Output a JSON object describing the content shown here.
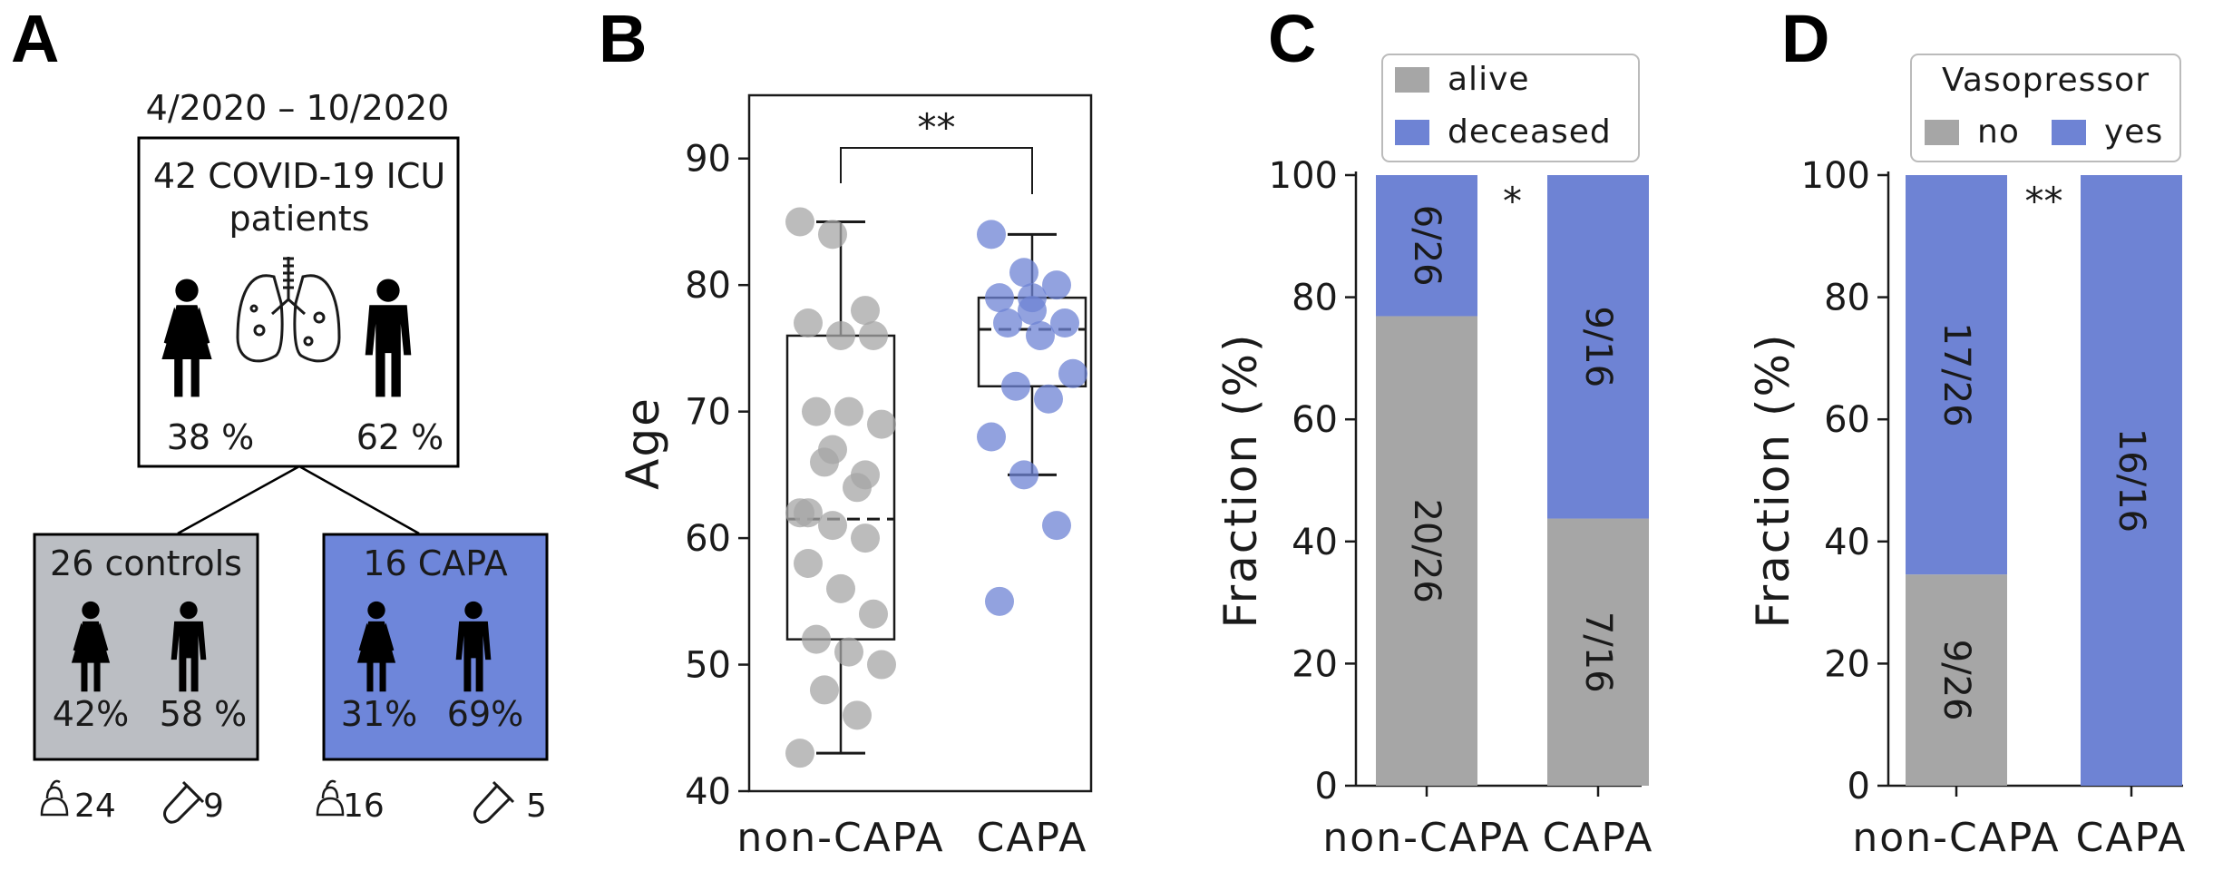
{
  "colors": {
    "gray": "#a6a6a6",
    "blue": "#6e83d4",
    "control_box": "#bbbec3",
    "capa_box": "#6e86da",
    "ink": "#1a1a1a"
  },
  "panel_a": {
    "letter": "A",
    "period": "4/2020 – 10/2020",
    "cohort_line1": "42 COVID-19 ICU",
    "cohort_line2": "patients",
    "female_pct": "38 %",
    "male_pct": "62 %",
    "controls": {
      "title": "26 controls",
      "female_pct": "42%",
      "male_pct": "58 %"
    },
    "capa": {
      "title": "16 CAPA",
      "female_pct": "31%",
      "male_pct": "69%"
    },
    "counts": {
      "controls_stool": "24",
      "controls_tube": "9",
      "capa_stool": "16",
      "capa_tube": "5"
    }
  },
  "chart_data": [
    {
      "panel": "B",
      "type": "scatter",
      "title": "",
      "xlabel": "",
      "ylabel": "Age",
      "ylim": [
        40,
        95
      ],
      "yticks": [
        40,
        50,
        60,
        70,
        80,
        90
      ],
      "categories": [
        "non-CAPA",
        "CAPA"
      ],
      "significance": "**",
      "series": [
        {
          "name": "non-CAPA",
          "color": "#a6a6a6",
          "box": {
            "whisker_low": 43,
            "q1": 52,
            "median": 61.5,
            "q3": 76,
            "whisker_high": 85
          },
          "values": [
            85,
            84,
            78,
            77,
            76,
            76,
            70,
            70,
            69,
            66,
            64,
            62,
            61,
            60,
            58,
            56,
            54,
            52,
            51,
            50,
            48,
            46,
            43,
            67,
            65,
            62
          ]
        },
        {
          "name": "CAPA",
          "color": "#6e83d4",
          "box": {
            "whisker_low": 65,
            "q1": 72,
            "median": 76.5,
            "q3": 79,
            "whisker_high": 84
          },
          "values": [
            84,
            81,
            80,
            79,
            78,
            77,
            77,
            76,
            73,
            72,
            71,
            68,
            65,
            61,
            55,
            79
          ]
        }
      ]
    },
    {
      "panel": "C",
      "type": "bar",
      "title": "",
      "xlabel": "",
      "ylabel": "Fraction (%)",
      "ylim": [
        0,
        100
      ],
      "yticks": [
        0,
        20,
        40,
        60,
        80,
        100
      ],
      "categories": [
        "non-CAPA",
        "CAPA"
      ],
      "significance": "*",
      "legend_title": "",
      "series": [
        {
          "name": "alive",
          "color": "#a6a6a6",
          "values": [
            76.9,
            43.75
          ],
          "labels": [
            "20/26",
            "7/16"
          ]
        },
        {
          "name": "deceased",
          "color": "#6e83d4",
          "values": [
            23.1,
            56.25
          ],
          "labels": [
            "6/26",
            "9/16"
          ]
        }
      ]
    },
    {
      "panel": "D",
      "type": "bar",
      "title": "",
      "xlabel": "",
      "ylabel": "Fraction (%)",
      "ylim": [
        0,
        100
      ],
      "yticks": [
        0,
        20,
        40,
        60,
        80,
        100
      ],
      "categories": [
        "non-CAPA",
        "CAPA"
      ],
      "significance": "**",
      "legend_title": "Vasopressor",
      "series": [
        {
          "name": "no",
          "color": "#a6a6a6",
          "values": [
            34.6,
            0
          ],
          "labels": [
            "9/26",
            ""
          ]
        },
        {
          "name": "yes",
          "color": "#6e83d4",
          "values": [
            65.4,
            100
          ],
          "labels": [
            "17/26",
            "16/16"
          ]
        }
      ]
    }
  ]
}
